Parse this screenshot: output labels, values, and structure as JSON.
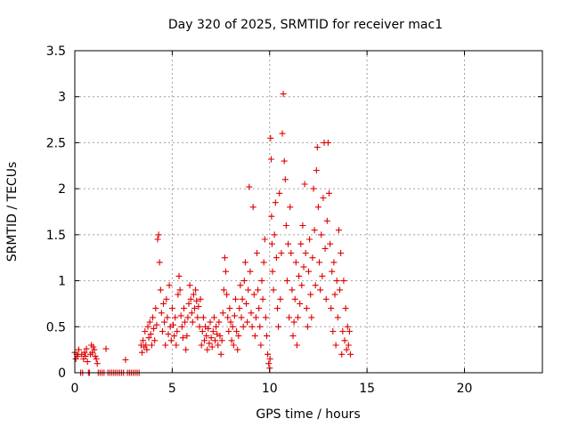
{
  "chart_data": {
    "type": "scatter",
    "title": "Day 320 of 2025, SRMTID for receiver mac1",
    "xlabel": "GPS time / hours",
    "ylabel": "SRMTID / TECUs",
    "xlim": [
      0,
      24
    ],
    "ylim": [
      0,
      3.5
    ],
    "x_ticks": [
      0,
      5,
      10,
      15,
      20
    ],
    "y_ticks": [
      0,
      0.5,
      1,
      1.5,
      2,
      2.5,
      3,
      3.5
    ],
    "x_tick_labels": [
      "0",
      "5",
      "10",
      "15",
      "20"
    ],
    "y_tick_labels": [
      "0",
      "0.5",
      "1",
      "1.5",
      "2",
      "2.5",
      "3",
      "3.5"
    ],
    "grid": true,
    "marker": "plus",
    "series": [
      {
        "name": "SRMTID",
        "color": "#e00000",
        "points": [
          [
            0.0,
            0.22
          ],
          [
            0.05,
            0.15
          ],
          [
            0.1,
            0.2
          ],
          [
            0.15,
            0.18
          ],
          [
            0.2,
            0.25
          ],
          [
            0.3,
            0.0
          ],
          [
            0.35,
            0.2
          ],
          [
            0.4,
            0.0
          ],
          [
            0.45,
            0.15
          ],
          [
            0.5,
            0.22
          ],
          [
            0.55,
            0.18
          ],
          [
            0.6,
            0.26
          ],
          [
            0.65,
            0.12
          ],
          [
            0.7,
            0.0
          ],
          [
            0.75,
            0.0
          ],
          [
            0.8,
            0.2
          ],
          [
            0.85,
            0.3
          ],
          [
            0.9,
            0.22
          ],
          [
            0.95,
            0.28
          ],
          [
            1.0,
            0.25
          ],
          [
            1.05,
            0.18
          ],
          [
            1.1,
            0.15
          ],
          [
            1.15,
            0.1
          ],
          [
            1.2,
            0.0
          ],
          [
            1.3,
            0.0
          ],
          [
            1.4,
            0.0
          ],
          [
            1.5,
            0.0
          ],
          [
            1.6,
            0.26
          ],
          [
            1.7,
            0.0
          ],
          [
            1.8,
            0.0
          ],
          [
            1.9,
            0.0
          ],
          [
            2.0,
            0.0
          ],
          [
            2.1,
            0.0
          ],
          [
            2.2,
            0.0
          ],
          [
            2.3,
            0.0
          ],
          [
            2.4,
            0.0
          ],
          [
            2.5,
            0.0
          ],
          [
            2.6,
            0.14
          ],
          [
            2.7,
            0.0
          ],
          [
            2.8,
            0.0
          ],
          [
            2.9,
            0.0
          ],
          [
            3.0,
            0.0
          ],
          [
            3.1,
            0.0
          ],
          [
            3.2,
            0.0
          ],
          [
            3.3,
            0.0
          ],
          [
            3.4,
            0.3
          ],
          [
            3.45,
            0.22
          ],
          [
            3.5,
            0.35
          ],
          [
            3.55,
            0.28
          ],
          [
            3.6,
            0.45
          ],
          [
            3.65,
            0.3
          ],
          [
            3.7,
            0.25
          ],
          [
            3.75,
            0.5
          ],
          [
            3.8,
            0.38
          ],
          [
            3.85,
            0.55
          ],
          [
            3.9,
            0.42
          ],
          [
            3.95,
            0.3
          ],
          [
            4.0,
            0.6
          ],
          [
            4.05,
            0.48
          ],
          [
            4.1,
            0.35
          ],
          [
            4.15,
            0.7
          ],
          [
            4.2,
            0.52
          ],
          [
            4.25,
            1.45
          ],
          [
            4.3,
            1.5
          ],
          [
            4.35,
            1.2
          ],
          [
            4.4,
            0.9
          ],
          [
            4.45,
            0.65
          ],
          [
            4.5,
            0.45
          ],
          [
            4.55,
            0.75
          ],
          [
            4.6,
            0.55
          ],
          [
            4.65,
            0.3
          ],
          [
            4.7,
            0.8
          ],
          [
            4.75,
            0.6
          ],
          [
            4.8,
            0.42
          ],
          [
            4.85,
            0.95
          ],
          [
            4.9,
            0.5
          ],
          [
            4.95,
            0.35
          ],
          [
            5.0,
            0.7
          ],
          [
            5.05,
            0.52
          ],
          [
            5.1,
            0.4
          ],
          [
            5.15,
            0.6
          ],
          [
            5.2,
            0.3
          ],
          [
            5.25,
            0.45
          ],
          [
            5.3,
            0.85
          ],
          [
            5.35,
            1.05
          ],
          [
            5.4,
            0.9
          ],
          [
            5.45,
            0.62
          ],
          [
            5.5,
            0.5
          ],
          [
            5.55,
            0.38
          ],
          [
            5.6,
            0.7
          ],
          [
            5.65,
            0.55
          ],
          [
            5.7,
            0.25
          ],
          [
            5.75,
            0.4
          ],
          [
            5.8,
            0.6
          ],
          [
            5.85,
            0.75
          ],
          [
            5.9,
            0.95
          ],
          [
            5.95,
            0.8
          ],
          [
            6.0,
            0.65
          ],
          [
            6.05,
            0.55
          ],
          [
            6.1,
            0.85
          ],
          [
            6.15,
            0.7
          ],
          [
            6.2,
            0.9
          ],
          [
            6.25,
            0.78
          ],
          [
            6.3,
            0.6
          ],
          [
            6.35,
            0.72
          ],
          [
            6.4,
            0.5
          ],
          [
            6.45,
            0.8
          ],
          [
            6.5,
            0.3
          ],
          [
            6.55,
            0.45
          ],
          [
            6.6,
            0.6
          ],
          [
            6.65,
            0.35
          ],
          [
            6.7,
            0.5
          ],
          [
            6.75,
            0.4
          ],
          [
            6.8,
            0.25
          ],
          [
            6.85,
            0.48
          ],
          [
            6.9,
            0.32
          ],
          [
            6.95,
            0.55
          ],
          [
            7.0,
            0.38
          ],
          [
            7.05,
            0.28
          ],
          [
            7.1,
            0.45
          ],
          [
            7.15,
            0.6
          ],
          [
            7.2,
            0.35
          ],
          [
            7.25,
            0.5
          ],
          [
            7.3,
            0.42
          ],
          [
            7.35,
            0.3
          ],
          [
            7.4,
            0.55
          ],
          [
            7.45,
            0.4
          ],
          [
            7.5,
            0.2
          ],
          [
            7.55,
            0.35
          ],
          [
            7.6,
            0.65
          ],
          [
            7.65,
            0.9
          ],
          [
            7.7,
            1.25
          ],
          [
            7.75,
            1.1
          ],
          [
            7.8,
            0.85
          ],
          [
            7.85,
            0.6
          ],
          [
            7.9,
            0.45
          ],
          [
            7.95,
            0.7
          ],
          [
            8.0,
            0.55
          ],
          [
            8.05,
            0.35
          ],
          [
            8.1,
            0.5
          ],
          [
            8.15,
            0.3
          ],
          [
            8.2,
            0.62
          ],
          [
            8.25,
            0.8
          ],
          [
            8.3,
            0.45
          ],
          [
            8.35,
            0.25
          ],
          [
            8.4,
            0.4
          ],
          [
            8.45,
            0.7
          ],
          [
            8.5,
            0.95
          ],
          [
            8.55,
            0.6
          ],
          [
            8.6,
            0.8
          ],
          [
            8.65,
            0.5
          ],
          [
            8.7,
            1.0
          ],
          [
            8.75,
            1.2
          ],
          [
            8.8,
            0.75
          ],
          [
            8.85,
            0.55
          ],
          [
            8.9,
            0.9
          ],
          [
            8.95,
            2.02
          ],
          [
            9.0,
            1.1
          ],
          [
            9.05,
            0.65
          ],
          [
            9.1,
            0.5
          ],
          [
            9.15,
            1.8
          ],
          [
            9.2,
            0.85
          ],
          [
            9.25,
            0.4
          ],
          [
            9.3,
            0.6
          ],
          [
            9.35,
            1.3
          ],
          [
            9.4,
            0.9
          ],
          [
            9.45,
            0.7
          ],
          [
            9.5,
            0.5
          ],
          [
            9.55,
            0.3
          ],
          [
            9.6,
            1.0
          ],
          [
            9.65,
            0.8
          ],
          [
            9.7,
            1.2
          ],
          [
            9.75,
            1.45
          ],
          [
            9.8,
            0.6
          ],
          [
            9.85,
            0.4
          ],
          [
            9.9,
            0.2
          ],
          [
            9.95,
            0.1
          ],
          [
            10.0,
            0.05
          ],
          [
            10.02,
            0.15
          ],
          [
            10.05,
            2.55
          ],
          [
            10.08,
            2.32
          ],
          [
            10.1,
            1.7
          ],
          [
            10.12,
            1.4
          ],
          [
            10.15,
            1.1
          ],
          [
            10.2,
            0.9
          ],
          [
            10.25,
            1.5
          ],
          [
            10.3,
            1.85
          ],
          [
            10.35,
            1.25
          ],
          [
            10.4,
            0.7
          ],
          [
            10.45,
            0.5
          ],
          [
            10.5,
            1.95
          ],
          [
            10.55,
            0.8
          ],
          [
            10.6,
            1.3
          ],
          [
            10.65,
            2.6
          ],
          [
            10.7,
            3.03
          ],
          [
            10.75,
            2.3
          ],
          [
            10.8,
            2.1
          ],
          [
            10.85,
            1.6
          ],
          [
            10.9,
            1.0
          ],
          [
            10.95,
            1.4
          ],
          [
            11.0,
            0.6
          ],
          [
            11.05,
            1.8
          ],
          [
            11.1,
            1.3
          ],
          [
            11.15,
            0.9
          ],
          [
            11.2,
            0.4
          ],
          [
            11.25,
            0.55
          ],
          [
            11.3,
            0.8
          ],
          [
            11.35,
            1.2
          ],
          [
            11.4,
            0.3
          ],
          [
            11.45,
            0.6
          ],
          [
            11.5,
            1.05
          ],
          [
            11.55,
            0.75
          ],
          [
            11.6,
            1.4
          ],
          [
            11.65,
            0.95
          ],
          [
            11.7,
            1.6
          ],
          [
            11.75,
            1.15
          ],
          [
            11.8,
            2.05
          ],
          [
            11.85,
            1.3
          ],
          [
            11.9,
            0.7
          ],
          [
            11.95,
            0.5
          ],
          [
            12.0,
            1.1
          ],
          [
            12.05,
            1.45
          ],
          [
            12.1,
            0.85
          ],
          [
            12.15,
            0.6
          ],
          [
            12.2,
            1.25
          ],
          [
            12.25,
            2.0
          ],
          [
            12.3,
            1.55
          ],
          [
            12.35,
            0.95
          ],
          [
            12.4,
            2.2
          ],
          [
            12.45,
            2.45
          ],
          [
            12.5,
            1.8
          ],
          [
            12.55,
            1.2
          ],
          [
            12.6,
            0.9
          ],
          [
            12.65,
            1.5
          ],
          [
            12.7,
            1.05
          ],
          [
            12.75,
            1.9
          ],
          [
            12.8,
            2.5
          ],
          [
            12.85,
            1.35
          ],
          [
            12.9,
            0.8
          ],
          [
            12.95,
            1.65
          ],
          [
            13.0,
            2.5
          ],
          [
            13.05,
            1.95
          ],
          [
            13.1,
            1.4
          ],
          [
            13.15,
            0.7
          ],
          [
            13.2,
            1.1
          ],
          [
            13.25,
            0.45
          ],
          [
            13.3,
            1.2
          ],
          [
            13.35,
            0.85
          ],
          [
            13.4,
            0.3
          ],
          [
            13.45,
            1.0
          ],
          [
            13.5,
            0.6
          ],
          [
            13.55,
            1.55
          ],
          [
            13.6,
            0.9
          ],
          [
            13.65,
            1.3
          ],
          [
            13.7,
            0.2
          ],
          [
            13.75,
            0.45
          ],
          [
            13.8,
            1.0
          ],
          [
            13.85,
            0.35
          ],
          [
            13.9,
            0.7
          ],
          [
            13.95,
            0.25
          ],
          [
            14.0,
            0.5
          ],
          [
            14.05,
            0.3
          ],
          [
            14.1,
            0.45
          ],
          [
            14.15,
            0.2
          ]
        ]
      }
    ]
  }
}
